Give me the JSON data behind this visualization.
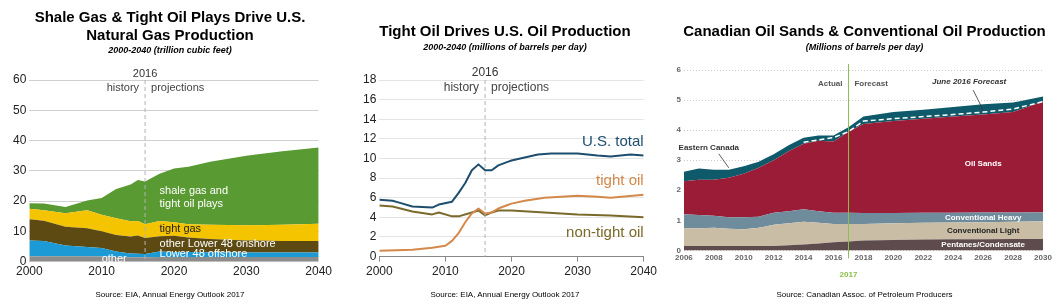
{
  "chart_data": [
    {
      "type": "area",
      "title": "Shale Gas & Tight Oil Plays Drive U.S. Natural Gas Production",
      "subtitle": "2000-2040 (trillion cubic feet)",
      "stacked": true,
      "x": [
        2000,
        2002,
        2005,
        2008,
        2010,
        2012,
        2014,
        2015,
        2016,
        2018,
        2020,
        2022,
        2025,
        2030,
        2035,
        2040
      ],
      "series": [
        {
          "name": "other",
          "color": "#8c8c8c",
          "values": [
            1.7,
            1.8,
            1.8,
            1.8,
            1.7,
            1.5,
            1.4,
            1.4,
            1.4,
            1.5,
            1.5,
            1.5,
            1.5,
            1.5,
            1.5,
            1.5
          ]
        },
        {
          "name": "Lower 48 offshore",
          "color": "#1b9ad6",
          "values": [
            5.3,
            5.0,
            3.5,
            3.0,
            2.8,
            1.8,
            1.3,
            1.2,
            1.1,
            1.8,
            1.7,
            1.7,
            1.6,
            1.5,
            1.5,
            1.5
          ]
        },
        {
          "name": "other Lower 48 onshore",
          "color": "#5c4a12",
          "values": [
            7.0,
            6.7,
            6.2,
            6.2,
            5.5,
            5.5,
            5.6,
            6.0,
            5.3,
            5.1,
            5.3,
            4.8,
            4.4,
            4.0,
            3.8,
            3.8
          ]
        },
        {
          "name": "tight gas",
          "color": "#f5c400",
          "values": [
            3.5,
            3.5,
            4.5,
            6.0,
            5.5,
            5.5,
            5.0,
            4.8,
            4.5,
            5.0,
            4.5,
            4.3,
            4.7,
            5.0,
            5.4,
            5.7
          ]
        },
        {
          "name": "shale gas and tight oil plays",
          "color": "#5a9a32",
          "values": [
            1.8,
            2.2,
            2.0,
            3.2,
            5.5,
            9.7,
            12.2,
            13.6,
            14.2,
            15.6,
            17.8,
            19.0,
            20.8,
            23.0,
            24.3,
            25.2
          ]
        }
      ],
      "xlim": [
        2000,
        2040
      ],
      "xticks": [
        2000,
        2010,
        2020,
        2030,
        2040
      ],
      "ylim": [
        0,
        60
      ],
      "yticks": [
        0,
        10,
        20,
        30,
        40,
        50,
        60
      ],
      "grid": "y",
      "ref_lines": [
        {
          "axis": "x",
          "value": 2016,
          "label": "2016",
          "color": "#b4b4b4",
          "line_style": "dashed"
        }
      ],
      "annotations": [
        "history",
        "projections",
        "Source: EIA, Annual Energy Outlook 2017"
      ]
    },
    {
      "type": "line",
      "title": "Tight Oil Drives U.S. Oil Production",
      "subtitle": "2000-2040 (millions of barrels per day)",
      "series": [
        {
          "name": "U.S. total",
          "color": "#1d4e6e",
          "x": [
            2000,
            2002,
            2003,
            2005,
            2008,
            2009,
            2011,
            2012,
            2013,
            2014,
            2015,
            2016,
            2017,
            2018,
            2020,
            2022,
            2024,
            2026,
            2030,
            2033,
            2035,
            2038,
            2040
          ],
          "values": [
            5.8,
            5.7,
            5.5,
            5.1,
            5.0,
            5.3,
            5.6,
            6.5,
            7.5,
            8.8,
            9.4,
            8.8,
            8.8,
            9.3,
            9.8,
            10.1,
            10.4,
            10.5,
            10.5,
            10.3,
            10.2,
            10.4,
            10.3
          ]
        },
        {
          "name": "tight oil",
          "color": "#d4884a",
          "x": [
            2000,
            2005,
            2008,
            2010,
            2011,
            2012,
            2013,
            2014,
            2015,
            2016,
            2017,
            2018,
            2020,
            2022,
            2025,
            2030,
            2033,
            2035,
            2040
          ],
          "values": [
            0.6,
            0.7,
            0.9,
            1.1,
            1.6,
            2.4,
            3.5,
            4.4,
            4.9,
            4.4,
            4.5,
            4.9,
            5.4,
            5.7,
            6.0,
            6.2,
            6.1,
            6.0,
            6.3
          ]
        },
        {
          "name": "non-tight oil",
          "color": "#7a6a2a",
          "x": [
            2000,
            2002,
            2005,
            2008,
            2009,
            2011,
            2012,
            2014,
            2015,
            2016,
            2017,
            2018,
            2020,
            2025,
            2030,
            2035,
            2040
          ],
          "values": [
            5.2,
            5.1,
            4.6,
            4.3,
            4.5,
            4.1,
            4.1,
            4.5,
            4.7,
            4.2,
            4.5,
            4.7,
            4.7,
            4.5,
            4.3,
            4.2,
            4.0
          ]
        }
      ],
      "xlim": [
        2000,
        2040
      ],
      "xticks": [
        2000,
        2010,
        2020,
        2030,
        2040
      ],
      "ylim": [
        0,
        18
      ],
      "yticks": [
        0,
        2,
        4,
        6,
        8,
        10,
        12,
        14,
        16,
        18
      ],
      "grid": "y",
      "ref_lines": [
        {
          "axis": "x",
          "value": 2016,
          "label": "2016",
          "color": "#b4b4b4",
          "line_style": "dashed"
        }
      ],
      "annotations": [
        "history",
        "projections",
        "Source: EIA, Annual Energy Outlook 2017"
      ]
    },
    {
      "type": "area",
      "title": "Canadian Oil Sands & Conventional Oil Production",
      "subtitle": "(Millions of barrels per day)",
      "stacked": true,
      "x": [
        2006,
        2007,
        2008,
        2009,
        2010,
        2011,
        2012,
        2013,
        2014,
        2015,
        2016,
        2017,
        2018,
        2020,
        2022,
        2024,
        2026,
        2028,
        2030
      ],
      "series": [
        {
          "name": "Pentanes/Condensate",
          "color": "#5e4b4d",
          "values": [
            0.15,
            0.15,
            0.15,
            0.15,
            0.15,
            0.15,
            0.15,
            0.17,
            0.2,
            0.23,
            0.27,
            0.3,
            0.33,
            0.35,
            0.36,
            0.37,
            0.37,
            0.38,
            0.38
          ]
        },
        {
          "name": "Conventional Light",
          "color": "#c9bda6",
          "values": [
            0.58,
            0.59,
            0.6,
            0.57,
            0.55,
            0.6,
            0.7,
            0.73,
            0.75,
            0.69,
            0.61,
            0.58,
            0.55,
            0.55,
            0.56,
            0.56,
            0.57,
            0.57,
            0.59
          ]
        },
        {
          "name": "Conventional Heavy",
          "color": "#6f8c9c",
          "values": [
            0.47,
            0.44,
            0.4,
            0.38,
            0.4,
            0.37,
            0.4,
            0.4,
            0.42,
            0.38,
            0.37,
            0.37,
            0.36,
            0.34,
            0.33,
            0.32,
            0.32,
            0.31,
            0.3
          ]
        },
        {
          "name": "Oil Sands",
          "color": "#9b1c36",
          "values": [
            1.1,
            1.17,
            1.2,
            1.32,
            1.45,
            1.63,
            1.75,
            2.0,
            2.18,
            2.35,
            2.37,
            2.7,
            2.96,
            3.06,
            3.13,
            3.2,
            3.26,
            3.34,
            3.68
          ]
        },
        {
          "name": "Eastern Canada",
          "color": "#0e5a6a",
          "values": [
            0.32,
            0.37,
            0.33,
            0.26,
            0.25,
            0.2,
            0.2,
            0.2,
            0.2,
            0.17,
            0.2,
            0.15,
            0.25,
            0.3,
            0.3,
            0.32,
            0.34,
            0.32,
            0.17
          ]
        },
        {
          "name": "June 2016 Forecast",
          "type": "line",
          "color": "#ffffff",
          "line_style": "dashed",
          "x": [
            2014,
            2016,
            2017,
            2018,
            2020,
            2022,
            2024,
            2026,
            2028,
            2030
          ],
          "values": [
            3.6,
            3.75,
            3.95,
            4.3,
            4.38,
            4.45,
            4.52,
            4.6,
            4.7,
            4.95
          ]
        }
      ],
      "xlim": [
        2006,
        2030
      ],
      "xticks": [
        2006,
        2008,
        2010,
        2012,
        2014,
        2016,
        2018,
        2020,
        2022,
        2024,
        2026,
        2028,
        2030
      ],
      "ylim": [
        0,
        6
      ],
      "yticks": [
        0,
        1,
        2,
        3,
        4,
        5,
        6
      ],
      "grid": "y",
      "ref_lines": [
        {
          "axis": "x",
          "value": 2017,
          "label": "2017",
          "color": "#8cc04a"
        }
      ],
      "annotations": [
        "Actual",
        "Forecast",
        "Source: Canadian Assoc. of Petroleum Producers"
      ]
    }
  ]
}
